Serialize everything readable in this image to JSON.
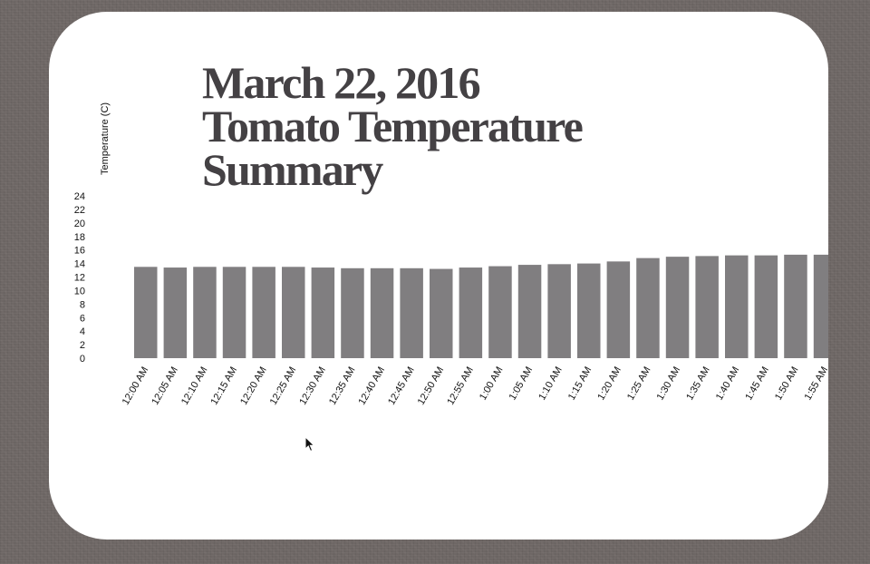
{
  "chart_data": {
    "type": "bar",
    "title_lines": [
      "March 22, 2016",
      "Tomato Temperature",
      "Summary"
    ],
    "ylabel": "Temperature (C)",
    "xlabel": "",
    "ylim": [
      0,
      24
    ],
    "yticks": [
      "24",
      "22",
      "20",
      "18",
      "16",
      "14",
      "12",
      "10",
      "8",
      "6",
      "4",
      "2",
      "0"
    ],
    "categories": [
      "12:00 AM",
      "12:05 AM",
      "12:10 AM",
      "12:15 AM",
      "12:20 AM",
      "12:25 AM",
      "12:30 AM",
      "12:35 AM",
      "12:40 AM",
      "12:45 AM",
      "12:50 AM",
      "12:55 AM",
      "1:00 AM",
      "1:05 AM",
      "1:10 AM",
      "1:15 AM",
      "1:20 AM",
      "1:25 AM",
      "1:30 AM",
      "1:35 AM",
      "1:40 AM",
      "1:45 AM",
      "1:50 AM",
      "1:55 AM"
    ],
    "values": [
      13.5,
      13.4,
      13.5,
      13.5,
      13.5,
      13.5,
      13.4,
      13.3,
      13.3,
      13.3,
      13.2,
      13.4,
      13.6,
      13.8,
      13.9,
      14.0,
      14.3,
      14.8,
      15.0,
      15.1,
      15.2,
      15.2,
      15.3,
      15.3
    ],
    "bar_color": "#807e80",
    "grid": false,
    "legend": "none"
  }
}
